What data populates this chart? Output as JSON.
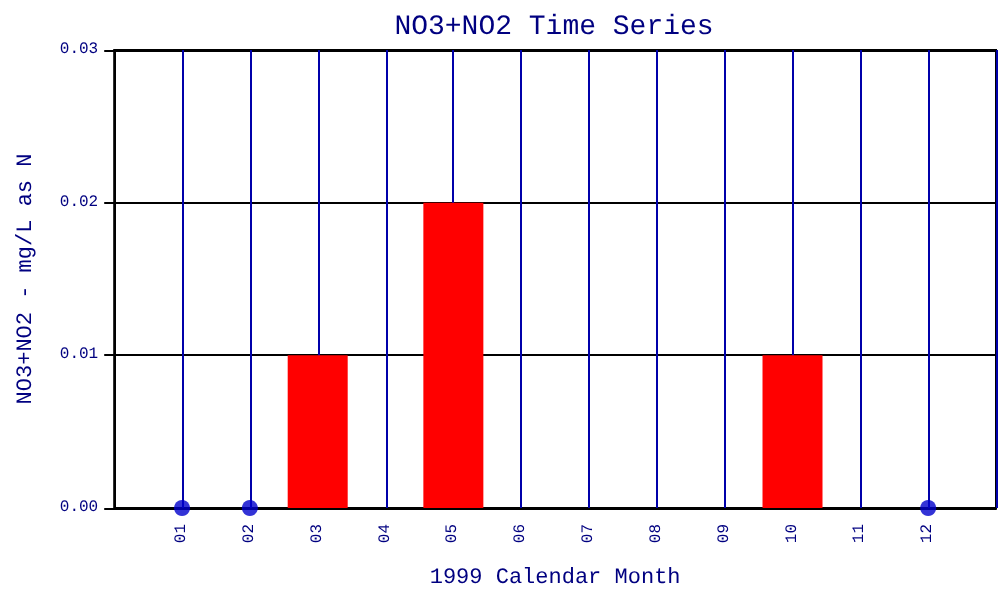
{
  "chart_data": {
    "type": "bar",
    "title": "NO3+NO2 Time Series",
    "xlabel": "1999 Calendar Month",
    "ylabel": "NO3+NO2 - mg/L as N",
    "categories": [
      "01",
      "02",
      "03",
      "04",
      "05",
      "06",
      "07",
      "08",
      "09",
      "10",
      "11",
      "12"
    ],
    "series": [
      {
        "color": "#ff0000",
        "values": [
          0,
          0,
          0.01,
          0,
          0.02,
          0,
          0,
          0,
          0,
          0.01,
          0,
          0
        ]
      },
      {
        "type": "scatter",
        "color": "#0000cc",
        "marker": "circle",
        "x": [
          "01",
          "02",
          "12"
        ],
        "values": [
          0,
          0,
          0
        ]
      }
    ],
    "ylim": [
      0,
      0.03
    ],
    "yticks": [
      {
        "value": 0,
        "label": "0.00"
      },
      {
        "value": 0.01,
        "label": "0.01"
      },
      {
        "value": 0.02,
        "label": "0.02"
      },
      {
        "value": 0.03,
        "label": "0.03"
      }
    ],
    "grid": true
  }
}
